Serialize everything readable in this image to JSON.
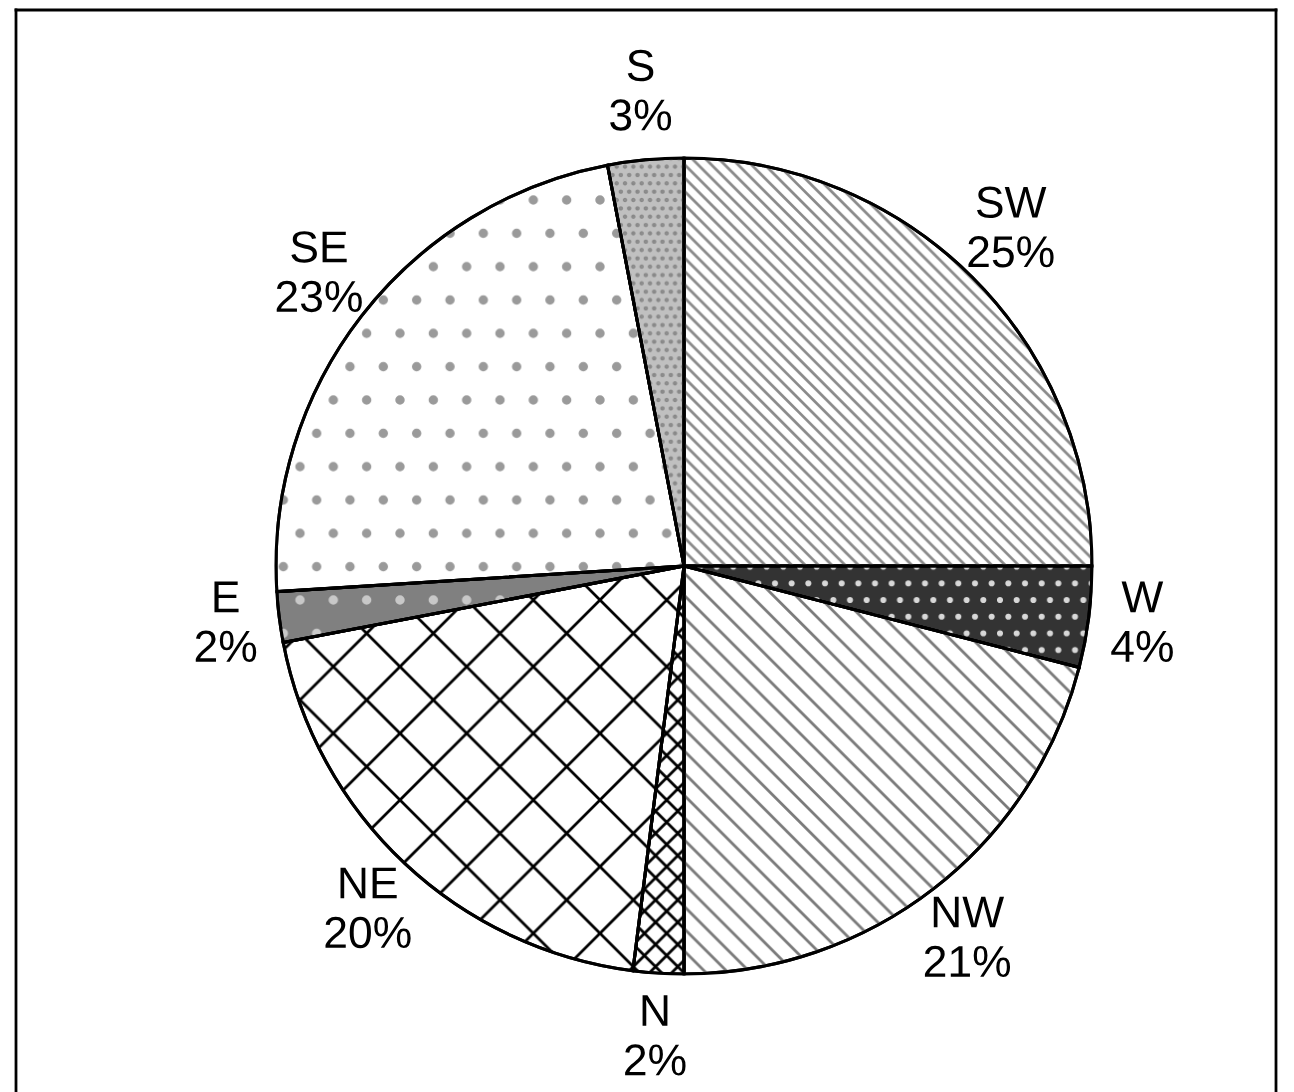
{
  "chart_data": {
    "type": "pie",
    "categories": [
      "SW",
      "W",
      "NW",
      "N",
      "NE",
      "E",
      "SE",
      "S"
    ],
    "values": [
      25,
      4,
      21,
      2,
      20,
      2,
      23,
      3
    ],
    "value_labels": [
      "25%",
      "4%",
      "21%",
      "2%",
      "20%",
      "2%",
      "23%",
      "3%"
    ],
    "colors": [
      "#ffffff",
      "#333333",
      "#ffffff",
      "#ffffff",
      "#ffffff",
      "#808080",
      "#ffffff",
      "#c0c0c0"
    ]
  }
}
